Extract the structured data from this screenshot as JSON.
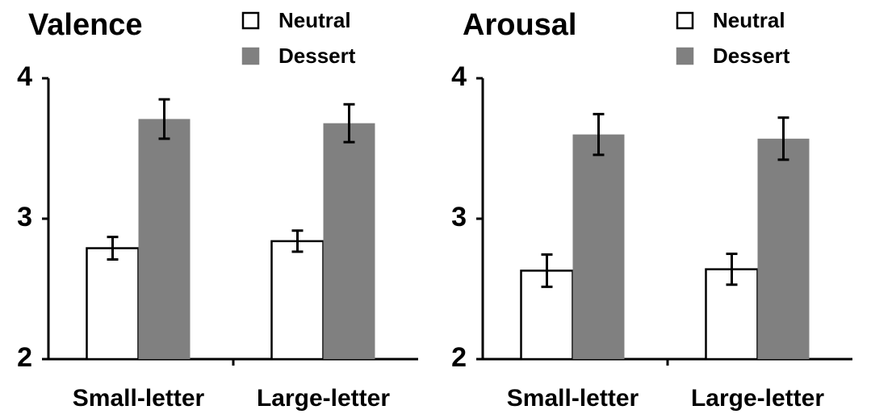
{
  "chart_data": [
    {
      "type": "bar",
      "title": "Valence",
      "categories": [
        "Small-letter",
        "Large-letter"
      ],
      "series": [
        {
          "name": "Neutral",
          "color": "#ffffff",
          "values": [
            2.79,
            2.84
          ],
          "errors": [
            0.08,
            0.075
          ]
        },
        {
          "name": "Dessert",
          "color": "#808080",
          "values": [
            3.71,
            3.68
          ],
          "errors": [
            0.14,
            0.135
          ]
        }
      ],
      "ylim": [
        2,
        4
      ],
      "yticks": [
        2,
        3,
        4
      ]
    },
    {
      "type": "bar",
      "title": "Arousal",
      "categories": [
        "Small-letter",
        "Large-letter"
      ],
      "series": [
        {
          "name": "Neutral",
          "color": "#ffffff",
          "values": [
            2.63,
            2.64
          ],
          "errors": [
            0.115,
            0.11
          ]
        },
        {
          "name": "Dessert",
          "color": "#808080",
          "values": [
            3.6,
            3.57
          ],
          "errors": [
            0.145,
            0.15
          ]
        }
      ],
      "ylim": [
        2,
        4
      ],
      "yticks": [
        2,
        3,
        4
      ]
    }
  ]
}
